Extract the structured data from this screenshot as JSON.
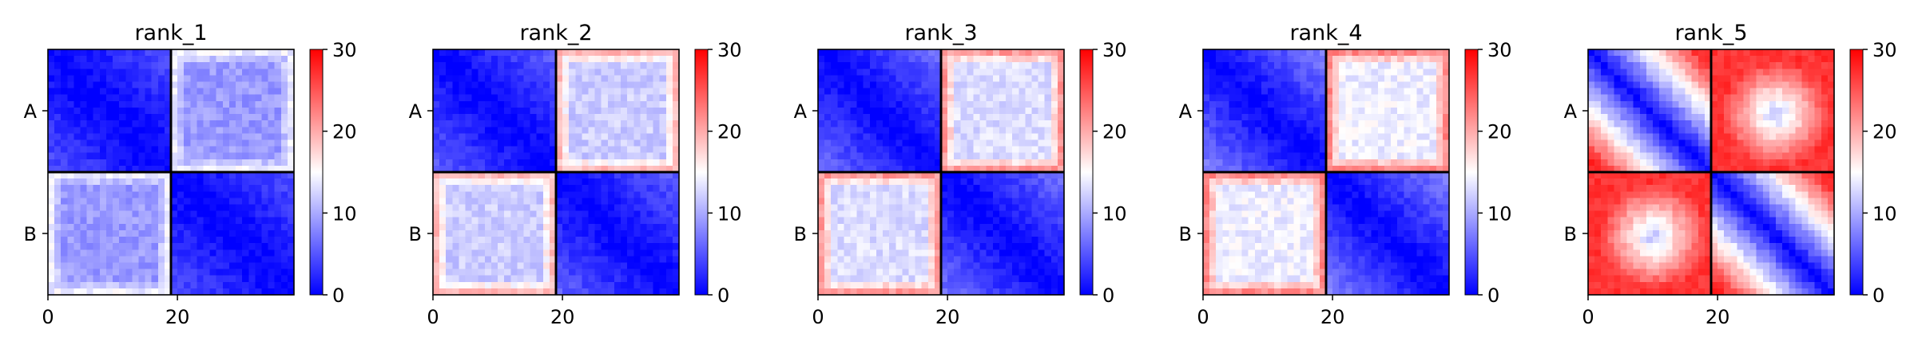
{
  "chart_data": {
    "type": "heatmap",
    "colormap": "bwr",
    "colorbar_range": [
      0,
      30
    ],
    "colorbar_ticks": [
      "0",
      "10",
      "20",
      "30"
    ],
    "x_ticks": [
      "0",
      "20"
    ],
    "x_tick_values": [
      0,
      20
    ],
    "y_tick_labels": [
      "A",
      "B"
    ],
    "matrix_size": 38,
    "block_boundary": 19,
    "panels": [
      {
        "title": "rank_1",
        "pattern": "intra_blue",
        "within_near": 0,
        "within_far": 5,
        "between": 9,
        "between_edge": 14
      },
      {
        "title": "rank_2",
        "pattern": "intra_blue",
        "within_near": 0,
        "within_far": 6,
        "between": 12,
        "between_edge": 19
      },
      {
        "title": "rank_3",
        "pattern": "intra_blue",
        "within_near": 0,
        "within_far": 7,
        "between": 13,
        "between_edge": 21
      },
      {
        "title": "rank_4",
        "pattern": "intra_blue",
        "within_near": 0,
        "within_far": 8,
        "between": 14,
        "between_edge": 22
      },
      {
        "title": "rank_5",
        "pattern": "distance",
        "within_near": 0,
        "within_far": 28,
        "between": 27,
        "between_center": 11
      }
    ]
  },
  "colors": {
    "low": "#0000ff",
    "mid": "#ffffff",
    "high": "#ff0000",
    "block_line": "#000000"
  }
}
